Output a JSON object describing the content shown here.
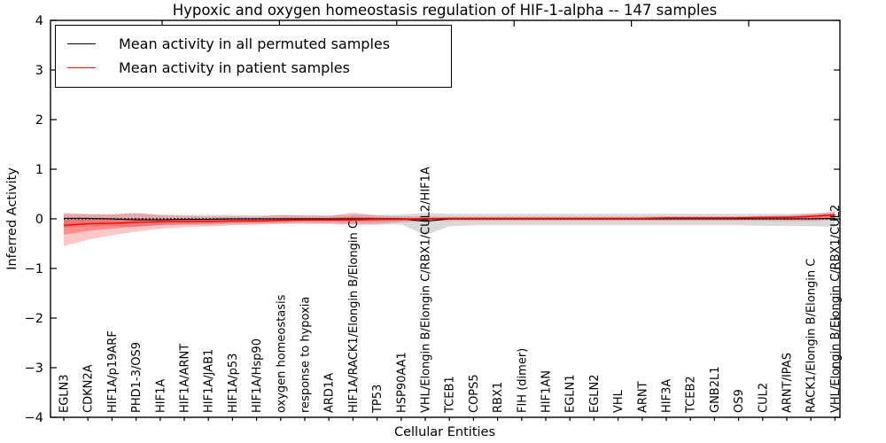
{
  "title": "Hypoxic and oxygen homeostasis regulation of HIF-1-alpha -- 147 samples",
  "legend": {
    "entries": [
      {
        "label": "Mean activity in all permuted samples",
        "color": "#000000"
      },
      {
        "label": "Mean activity in patient samples",
        "color": "#ff0000"
      }
    ]
  },
  "chart_data": {
    "type": "line",
    "title": "Hypoxic and oxygen homeostasis regulation of HIF-1-alpha -- 147 samples",
    "xlabel": "Cellular Entities",
    "ylabel": "Inferred Activity",
    "ylim": [
      -4,
      4
    ],
    "yticks": [
      4,
      3,
      2,
      1,
      0,
      -1,
      -2,
      -3,
      -4
    ],
    "grid": false,
    "legend_position": "upper left",
    "zero_line_style": "dotted",
    "samples_count": "147 samples",
    "categories": [
      "EGLN3",
      "CDKN2A",
      "HIF1A/p19ARF",
      "PHD1-3/OS9",
      "HIF1A",
      "HIF1A/ARNT",
      "HIF1A/JAB1",
      "HIF1A/p53",
      "HIF1A/Hsp90",
      "oxygen homeostasis",
      "response to hypoxia",
      "ARD1A",
      "HIF1A/RACK1/Elongin B/Elongin C",
      "TP53",
      "HSP90AA1",
      "VHL/Elongin B/Elongin C/RBX1/CUL2/HIF1A",
      "TCEB1",
      "COPS5",
      "RBX1",
      "FIH (dimer)",
      "HIF1AN",
      "EGLN1",
      "EGLN2",
      "VHL",
      "ARNT",
      "HIF3A",
      "TCEB2",
      "GNB2L1",
      "OS9",
      "CUL2",
      "ARNT/IPAS",
      "RACK1/Elongin B/Elongin C",
      "VHL/Elongin B/Elongin C/RBX1/CUL2"
    ],
    "series": [
      {
        "name": "Mean activity in all permuted samples",
        "color": "#000000",
        "band_color": "rgba(128,128,128,0.30)",
        "values": [
          0.01,
          0.01,
          0.0,
          -0.02,
          -0.02,
          -0.01,
          -0.01,
          0.0,
          0.0,
          0.0,
          0.0,
          0.0,
          0.0,
          0.0,
          0.0,
          -0.05,
          0.0,
          0.0,
          0.0,
          0.0,
          0.0,
          0.0,
          0.0,
          0.0,
          0.0,
          0.0,
          0.0,
          0.0,
          0.0,
          0.0,
          0.0,
          0.0,
          0.01
        ],
        "band_upper": [
          0.1,
          0.09,
          0.09,
          0.11,
          0.09,
          0.08,
          0.08,
          0.08,
          0.07,
          0.07,
          0.07,
          0.07,
          0.08,
          0.08,
          0.08,
          0.12,
          0.1,
          0.1,
          0.1,
          0.1,
          0.1,
          0.1,
          0.1,
          0.1,
          0.1,
          0.1,
          0.1,
          0.1,
          0.1,
          0.1,
          0.1,
          0.11,
          0.12
        ],
        "band_lower": [
          -0.18,
          -0.15,
          -0.14,
          -0.16,
          -0.13,
          -0.12,
          -0.12,
          -0.11,
          -0.1,
          -0.1,
          -0.1,
          -0.11,
          -0.12,
          -0.12,
          -0.11,
          -0.33,
          -0.15,
          -0.13,
          -0.13,
          -0.13,
          -0.13,
          -0.13,
          -0.13,
          -0.13,
          -0.13,
          -0.13,
          -0.13,
          -0.13,
          -0.13,
          -0.14,
          -0.14,
          -0.15,
          -0.16
        ]
      },
      {
        "name": "Mean activity in patient samples",
        "color": "#ff0000",
        "band_color": "rgba(255,0,0,0.22)",
        "values": [
          -0.13,
          -0.1,
          -0.09,
          -0.07,
          -0.06,
          -0.05,
          -0.05,
          -0.04,
          -0.04,
          -0.03,
          -0.02,
          -0.02,
          -0.02,
          -0.01,
          -0.01,
          0.0,
          0.01,
          0.01,
          0.01,
          0.01,
          0.01,
          0.01,
          0.01,
          0.01,
          0.01,
          0.02,
          0.02,
          0.02,
          0.02,
          0.03,
          0.03,
          0.05,
          0.08
        ],
        "band_upper": [
          0.12,
          0.1,
          0.09,
          0.12,
          0.07,
          0.06,
          0.05,
          0.05,
          0.04,
          0.08,
          0.07,
          0.06,
          0.13,
          0.07,
          0.05,
          0.05,
          0.04,
          0.04,
          0.04,
          0.04,
          0.04,
          0.04,
          0.04,
          0.04,
          0.04,
          0.05,
          0.05,
          0.05,
          0.05,
          0.06,
          0.07,
          0.1,
          0.15
        ],
        "band_lower": [
          -0.55,
          -0.42,
          -0.33,
          -0.26,
          -0.2,
          -0.17,
          -0.15,
          -0.13,
          -0.12,
          -0.1,
          -0.09,
          -0.09,
          -0.11,
          -0.1,
          -0.07,
          -0.05,
          -0.04,
          -0.04,
          -0.04,
          -0.04,
          -0.04,
          -0.04,
          -0.04,
          -0.04,
          -0.04,
          -0.04,
          -0.04,
          -0.04,
          -0.04,
          -0.04,
          -0.05,
          -0.05,
          -0.02
        ]
      }
    ]
  }
}
